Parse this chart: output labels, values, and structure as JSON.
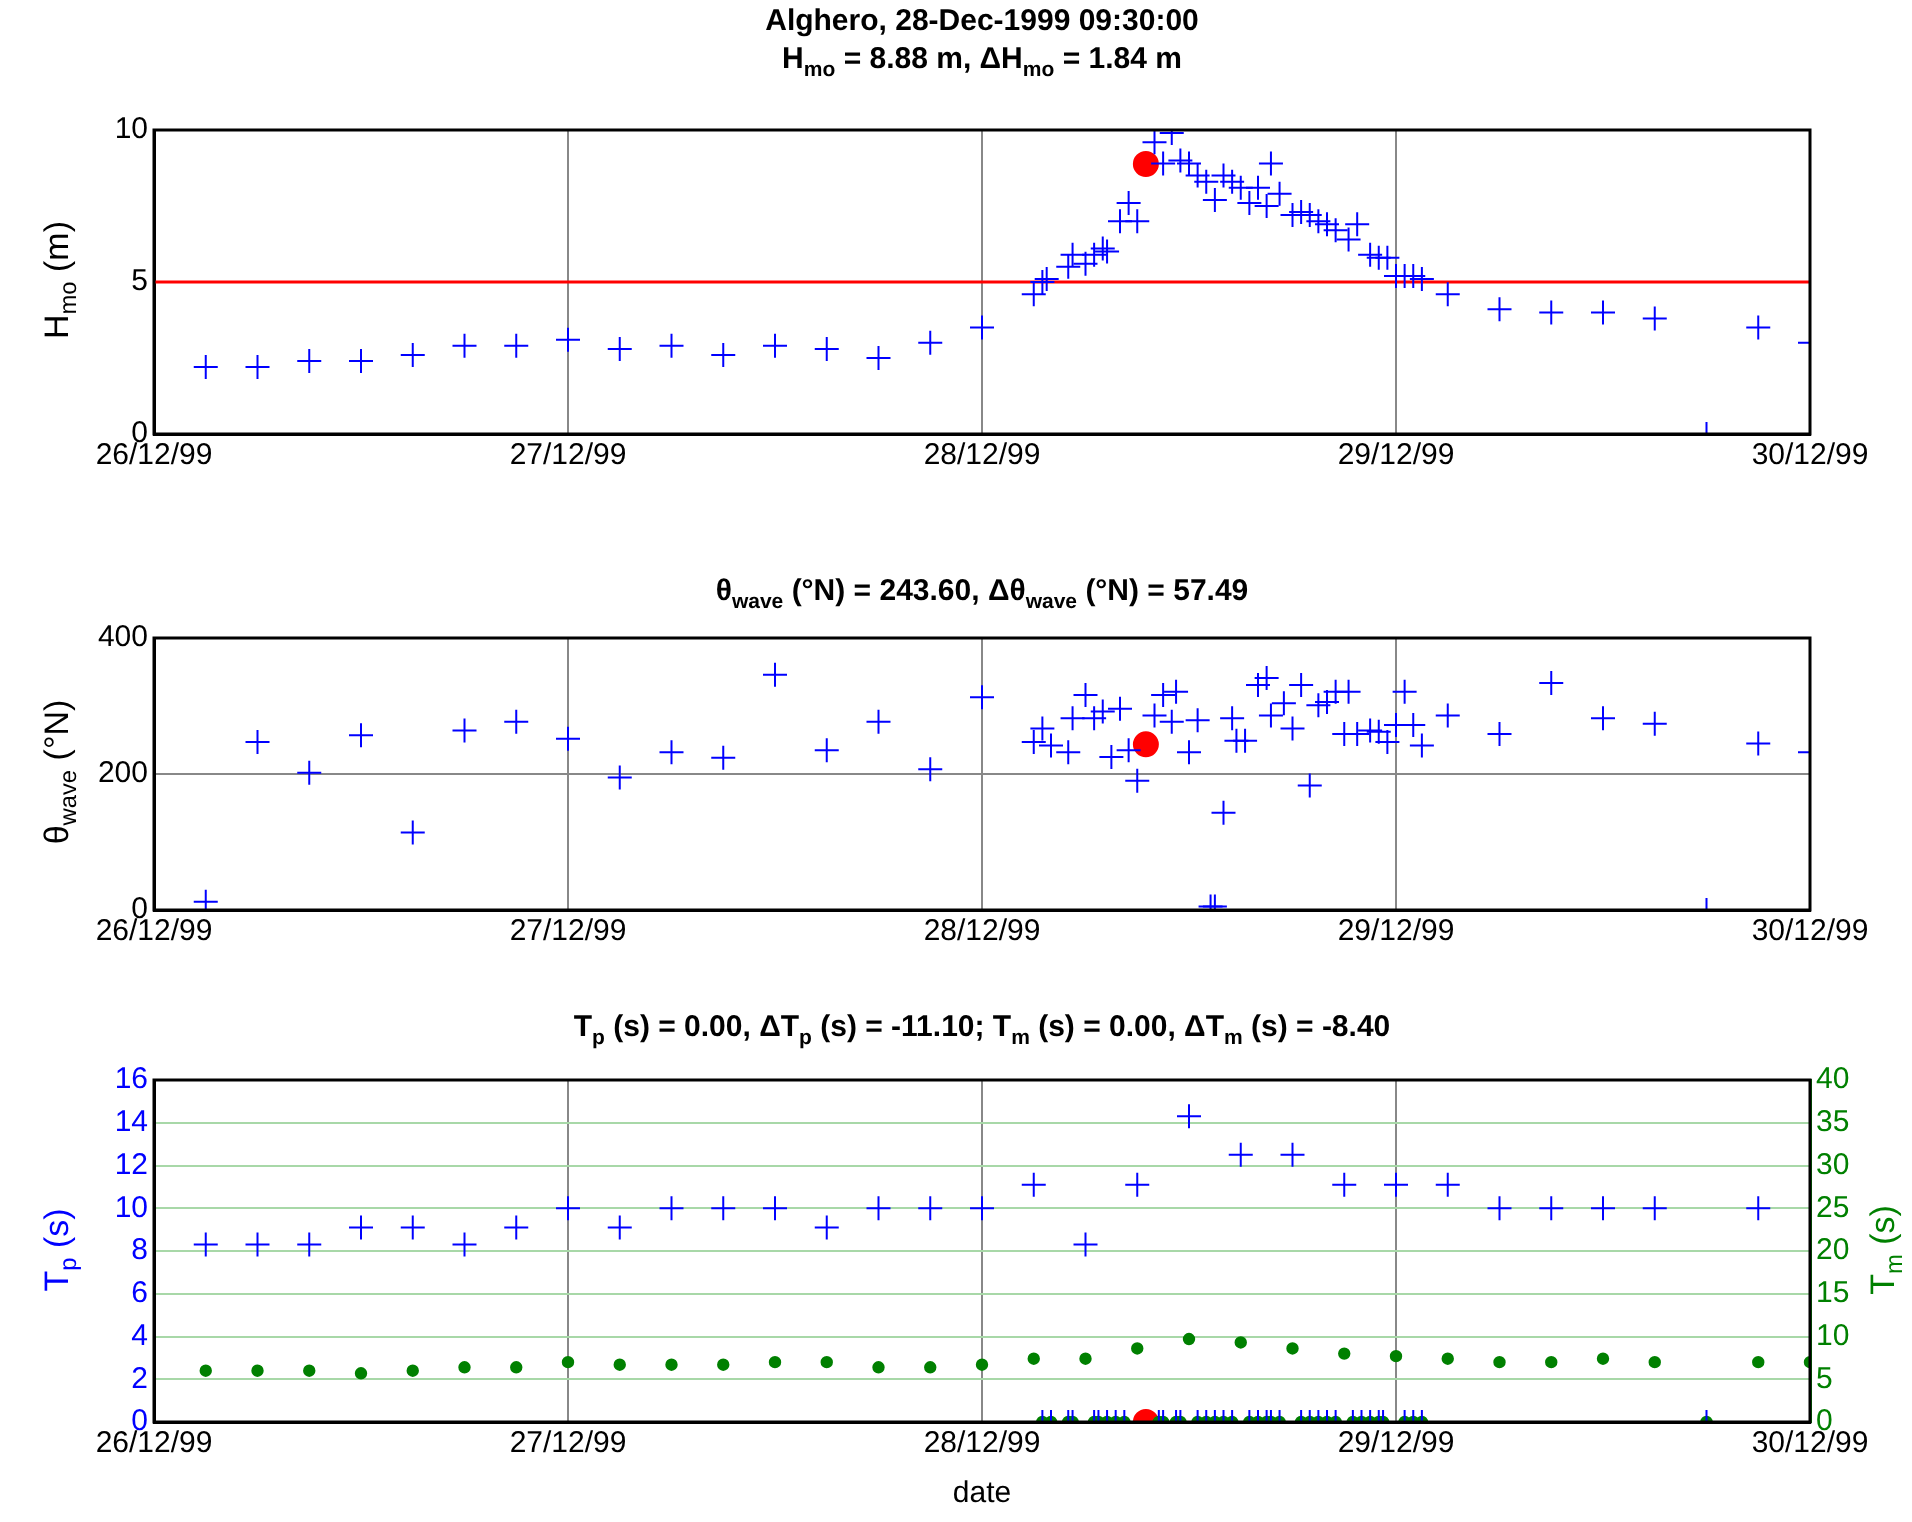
{
  "chart_data": [
    {
      "type": "scatter",
      "title": "Alghero, 28-Dec-1999 09:30:00",
      "subtitle": "H$_{mo}$ = 8.88 m, ΔH$_{mo}$ = 1.84 m",
      "ylabel": "H$_{mo}$ (m)",
      "xlim": [
        "1999-12-26",
        "1999-12-30"
      ],
      "xticks": [
        {
          "value": "1999-12-26",
          "label": "26/12/99"
        },
        {
          "value": "1999-12-27",
          "label": "27/12/99"
        },
        {
          "value": "1999-12-28",
          "label": "28/12/99"
        },
        {
          "value": "1999-12-29",
          "label": "29/12/99"
        },
        {
          "value": "1999-12-30",
          "label": "30/12/99"
        }
      ],
      "ylim": [
        0,
        10
      ],
      "yticks": [
        0,
        5,
        10
      ],
      "grid": "x",
      "ref_lines": [
        {
          "axis": "y",
          "value": 5,
          "color": "#ff0000"
        }
      ],
      "series": [
        {
          "color": "#0000ff",
          "marker": "cross",
          "x": [
            "1999-12-26T03:00",
            "1999-12-26T06:00",
            "1999-12-26T09:00",
            "1999-12-26T12:00",
            "1999-12-26T15:00",
            "1999-12-26T18:00",
            "1999-12-26T21:00",
            "1999-12-27T00:00",
            "1999-12-27T03:00",
            "1999-12-27T06:00",
            "1999-12-27T09:00",
            "1999-12-27T12:00",
            "1999-12-27T15:00",
            "1999-12-27T18:00",
            "1999-12-27T21:00",
            "1999-12-28T00:00",
            "1999-12-28T03:00",
            "1999-12-28T03:30",
            "1999-12-28T03:45",
            "1999-12-28T05:00",
            "1999-12-28T05:15",
            "1999-12-28T06:00",
            "1999-12-28T06:30",
            "1999-12-28T07:00",
            "1999-12-28T07:15",
            "1999-12-28T08:00",
            "1999-12-28T08:30",
            "1999-12-28T09:00",
            "1999-12-28T10:00",
            "1999-12-28T10:30",
            "1999-12-28T11:00",
            "1999-12-28T11:30",
            "1999-12-28T12:00",
            "1999-12-28T12:30",
            "1999-12-28T13:00",
            "1999-12-28T13:30",
            "1999-12-28T14:00",
            "1999-12-28T14:30",
            "1999-12-28T15:00",
            "1999-12-28T15:30",
            "1999-12-28T16:00",
            "1999-12-28T16:30",
            "1999-12-28T16:45",
            "1999-12-28T17:15",
            "1999-12-28T18:00",
            "1999-12-28T18:30",
            "1999-12-28T19:00",
            "1999-12-28T19:30",
            "1999-12-28T20:00",
            "1999-12-28T20:30",
            "1999-12-28T21:15",
            "1999-12-28T21:45",
            "1999-12-28T22:30",
            "1999-12-28T23:00",
            "1999-12-28T23:30",
            "1999-12-29T00:00",
            "1999-12-29T00:30",
            "1999-12-29T01:00",
            "1999-12-29T01:30",
            "1999-12-29T03:00",
            "1999-12-29T06:00",
            "1999-12-29T09:00",
            "1999-12-29T12:00",
            "1999-12-29T15:00",
            "1999-12-29T18:00",
            "1999-12-29T21:00",
            "1999-12-30T00:00"
          ],
          "values": [
            2.2,
            2.2,
            2.4,
            2.4,
            2.6,
            2.9,
            2.9,
            3.1,
            2.8,
            2.9,
            2.6,
            2.9,
            2.8,
            2.5,
            3.0,
            3.5,
            4.6,
            5.0,
            5.1,
            5.5,
            5.9,
            5.6,
            5.9,
            6.1,
            6.0,
            7.0,
            7.6,
            7.0,
            9.6,
            8.9,
            9.9,
            9.0,
            8.9,
            8.5,
            8.3,
            7.7,
            8.5,
            8.3,
            8.1,
            7.6,
            8.1,
            7.5,
            8.9,
            7.9,
            7.2,
            7.3,
            7.2,
            7.0,
            6.9,
            6.7,
            6.4,
            6.9,
            5.9,
            5.8,
            5.8,
            5.2,
            5.2,
            5.2,
            5.1,
            4.6,
            4.1,
            4.0,
            4.0,
            3.8,
            0,
            3.5,
            3.0
          ]
        },
        {
          "color": "#ff0000",
          "marker": "circle",
          "x": [
            "1999-12-28T09:30"
          ],
          "values": [
            8.88
          ]
        }
      ]
    },
    {
      "type": "scatter",
      "title": "θ$_{wave}$ (°N) = 243.60, Δθ$_{wave}$ (°N) = 57.49",
      "ylabel": "θ$_{wave}$ (°N)",
      "xlim": [
        "1999-12-26",
        "1999-12-30"
      ],
      "xticks": [
        {
          "value": "1999-12-26",
          "label": "26/12/99"
        },
        {
          "value": "1999-12-27",
          "label": "27/12/99"
        },
        {
          "value": "1999-12-28",
          "label": "28/12/99"
        },
        {
          "value": "1999-12-29",
          "label": "29/12/99"
        },
        {
          "value": "1999-12-30",
          "label": "30/12/99"
        }
      ],
      "ylim": [
        0,
        400
      ],
      "yticks": [
        0,
        200,
        400
      ],
      "grid": true,
      "series": [
        {
          "color": "#0000ff",
          "marker": "cross",
          "x": [
            "1999-12-26T03:00",
            "1999-12-26T06:00",
            "1999-12-26T09:00",
            "1999-12-26T12:00",
            "1999-12-26T15:00",
            "1999-12-26T18:00",
            "1999-12-26T21:00",
            "1999-12-27T00:00",
            "1999-12-27T03:00",
            "1999-12-27T06:00",
            "1999-12-27T09:00",
            "1999-12-27T12:00",
            "1999-12-27T15:00",
            "1999-12-27T18:00",
            "1999-12-27T21:00",
            "1999-12-28T00:00",
            "1999-12-28T03:00",
            "1999-12-28T03:30",
            "1999-12-28T04:00",
            "1999-12-28T05:00",
            "1999-12-28T05:15",
            "1999-12-28T06:00",
            "1999-12-28T06:30",
            "1999-12-28T07:00",
            "1999-12-28T07:30",
            "1999-12-28T08:00",
            "1999-12-28T08:30",
            "1999-12-28T09:00",
            "1999-12-28T10:00",
            "1999-12-28T10:30",
            "1999-12-28T11:00",
            "1999-12-28T11:15",
            "1999-12-28T12:00",
            "1999-12-28T12:30",
            "1999-12-28T13:15",
            "1999-12-28T13:30",
            "1999-12-28T14:00",
            "1999-12-28T14:30",
            "1999-12-28T14:45",
            "1999-12-28T15:15",
            "1999-12-28T16:00",
            "1999-12-28T16:30",
            "1999-12-28T16:45",
            "1999-12-28T17:30",
            "1999-12-28T18:00",
            "1999-12-28T18:30",
            "1999-12-28T19:00",
            "1999-12-28T19:30",
            "1999-12-28T20:00",
            "1999-12-28T20:30",
            "1999-12-28T21:00",
            "1999-12-28T21:15",
            "1999-12-28T21:45",
            "1999-12-28T22:30",
            "1999-12-28T23:00",
            "1999-12-28T23:30",
            "1999-12-29T00:00",
            "1999-12-29T00:30",
            "1999-12-29T01:00",
            "1999-12-29T01:30",
            "1999-12-29T03:00",
            "1999-12-29T06:00",
            "1999-12-29T09:00",
            "1999-12-29T12:00",
            "1999-12-29T15:00",
            "1999-12-29T18:00",
            "1999-12-29T21:00",
            "1999-12-30T00:00"
          ],
          "values": [
            12,
            247,
            202,
            257,
            114,
            264,
            277,
            252,
            195,
            232,
            224,
            346,
            235,
            277,
            207,
            313,
            247,
            267,
            242,
            232,
            282,
            316,
            282,
            292,
            225,
            296,
            235,
            190,
            286,
            316,
            277,
            321,
            232,
            279,
            5,
            5,
            143,
            282,
            249,
            249,
            331,
            341,
            286,
            304,
            267,
            331,
            183,
            301,
            306,
            321,
            259,
            321,
            259,
            264,
            262,
            247,
            272,
            321,
            272,
            242,
            286,
            259,
            334,
            282,
            274,
            0,
            245,
            232
          ]
        },
        {
          "color": "#ff0000",
          "marker": "circle",
          "x": [
            "1999-12-28T09:30"
          ],
          "values": [
            243.6
          ]
        }
      ]
    },
    {
      "type": "scatter",
      "title": "T$_{p}$ (s) = 0.00, ΔT$_{p}$ (s) = -11.10; T$_{m}$ (s) = 0.00, ΔT$_{m}$ (s) = -8.40",
      "xlabel": "date",
      "ylabel": "T$_{p}$ (s)",
      "y2label": "T$_{m}$ (s)",
      "xlim": [
        "1999-12-26",
        "1999-12-30"
      ],
      "xticks": [
        {
          "value": "1999-12-26",
          "label": "26/12/99"
        },
        {
          "value": "1999-12-27",
          "label": "27/12/99"
        },
        {
          "value": "1999-12-28",
          "label": "28/12/99"
        },
        {
          "value": "1999-12-29",
          "label": "29/12/99"
        },
        {
          "value": "1999-12-30",
          "label": "30/12/99"
        }
      ],
      "ylim": [
        0,
        16
      ],
      "yticks": [
        0,
        2,
        4,
        6,
        8,
        10,
        12,
        14,
        16
      ],
      "y2lim": [
        0,
        40
      ],
      "y2ticks": [
        0,
        5,
        10,
        15,
        20,
        25,
        30,
        35,
        40
      ],
      "grid": true,
      "series": [
        {
          "color": "#0000ff",
          "marker": "cross",
          "x": [
            "1999-12-26T03:00",
            "1999-12-26T06:00",
            "1999-12-26T09:00",
            "1999-12-26T12:00",
            "1999-12-26T15:00",
            "1999-12-26T18:00",
            "1999-12-26T21:00",
            "1999-12-27T00:00",
            "1999-12-27T03:00",
            "1999-12-27T06:00",
            "1999-12-27T09:00",
            "1999-12-27T12:00",
            "1999-12-27T15:00",
            "1999-12-27T18:00",
            "1999-12-27T21:00",
            "1999-12-28T00:00",
            "1999-12-28T03:00",
            "1999-12-28T03:30",
            "1999-12-28T04:00",
            "1999-12-28T05:00",
            "1999-12-28T05:15",
            "1999-12-28T06:00",
            "1999-12-28T06:30",
            "1999-12-28T06:45",
            "1999-12-28T07:15",
            "1999-12-28T07:45",
            "1999-12-28T08:15",
            "1999-12-28T09:00",
            "1999-12-28T10:15",
            "1999-12-28T10:30",
            "1999-12-28T11:15",
            "1999-12-28T11:30",
            "1999-12-28T12:00",
            "1999-12-28T12:30",
            "1999-12-28T13:00",
            "1999-12-28T13:30",
            "1999-12-28T14:00",
            "1999-12-28T14:30",
            "1999-12-28T15:00",
            "1999-12-28T15:30",
            "1999-12-28T16:00",
            "1999-12-28T16:30",
            "1999-12-28T16:45",
            "1999-12-28T17:15",
            "1999-12-28T18:00",
            "1999-12-28T18:30",
            "1999-12-28T19:00",
            "1999-12-28T19:30",
            "1999-12-28T20:00",
            "1999-12-28T20:30",
            "1999-12-28T21:00",
            "1999-12-28T21:30",
            "1999-12-28T22:00",
            "1999-12-28T22:30",
            "1999-12-28T23:00",
            "1999-12-28T23:15",
            "1999-12-29T00:00",
            "1999-12-29T00:30",
            "1999-12-29T01:00",
            "1999-12-29T01:30",
            "1999-12-29T03:00",
            "1999-12-29T06:00",
            "1999-12-29T09:00",
            "1999-12-29T12:00",
            "1999-12-29T15:00",
            "1999-12-29T18:00",
            "1999-12-29T21:00"
          ],
          "values": [
            8.3,
            8.3,
            8.3,
            9.1,
            9.1,
            8.3,
            9.1,
            10.0,
            9.1,
            10.0,
            10.0,
            10.0,
            9.1,
            10.0,
            10.0,
            10.0,
            11.1,
            0,
            0,
            0,
            0,
            8.3,
            0,
            0,
            0,
            0,
            0,
            11.1,
            0,
            0,
            0,
            0,
            14.3,
            0,
            0,
            0,
            0,
            0,
            12.5,
            0,
            0,
            0,
            0,
            0,
            12.5,
            0,
            0,
            0,
            0,
            0,
            11.1,
            0,
            0,
            0,
            0,
            0,
            11.1,
            0,
            0,
            0,
            11.1,
            10.0,
            10.0,
            10.0,
            10.0,
            0,
            10.0
          ]
        },
        {
          "color": "#008000",
          "marker": "circle",
          "axis": "y2",
          "x": [
            "1999-12-26T03:00",
            "1999-12-26T06:00",
            "1999-12-26T09:00",
            "1999-12-26T12:00",
            "1999-12-26T15:00",
            "1999-12-26T18:00",
            "1999-12-26T21:00",
            "1999-12-27T00:00",
            "1999-12-27T03:00",
            "1999-12-27T06:00",
            "1999-12-27T09:00",
            "1999-12-27T12:00",
            "1999-12-27T15:00",
            "1999-12-27T18:00",
            "1999-12-27T21:00",
            "1999-12-28T00:00",
            "1999-12-28T03:00",
            "1999-12-28T03:30",
            "1999-12-28T04:00",
            "1999-12-28T05:00",
            "1999-12-28T05:15",
            "1999-12-28T06:00",
            "1999-12-28T06:30",
            "1999-12-28T06:45",
            "1999-12-28T07:15",
            "1999-12-28T07:45",
            "1999-12-28T08:15",
            "1999-12-28T09:00",
            "1999-12-28T10:15",
            "1999-12-28T10:30",
            "1999-12-28T11:15",
            "1999-12-28T11:30",
            "1999-12-28T12:00",
            "1999-12-28T12:30",
            "1999-12-28T13:00",
            "1999-12-28T13:30",
            "1999-12-28T14:00",
            "1999-12-28T14:30",
            "1999-12-28T15:00",
            "1999-12-28T15:30",
            "1999-12-28T16:00",
            "1999-12-28T16:30",
            "1999-12-28T16:45",
            "1999-12-28T17:15",
            "1999-12-28T18:00",
            "1999-12-28T18:30",
            "1999-12-28T19:00",
            "1999-12-28T19:30",
            "1999-12-28T20:00",
            "1999-12-28T20:30",
            "1999-12-28T21:00",
            "1999-12-28T21:30",
            "1999-12-28T22:00",
            "1999-12-28T22:30",
            "1999-12-28T23:00",
            "1999-12-28T23:15",
            "1999-12-29T00:00",
            "1999-12-29T00:30",
            "1999-12-29T01:00",
            "1999-12-29T01:30",
            "1999-12-29T03:00",
            "1999-12-29T06:00",
            "1999-12-29T09:00",
            "1999-12-29T12:00",
            "1999-12-29T15:00",
            "1999-12-29T18:00",
            "1999-12-29T21:00",
            "1999-12-30T00:00"
          ],
          "values": [
            6.0,
            6.0,
            6.0,
            5.7,
            6.0,
            6.4,
            6.4,
            7.0,
            6.7,
            6.7,
            6.7,
            7.0,
            7.0,
            6.4,
            6.4,
            6.7,
            7.4,
            0,
            0,
            0,
            0,
            7.4,
            0,
            0,
            0,
            0,
            0,
            8.6,
            0,
            0,
            0,
            0,
            9.7,
            0,
            0,
            0,
            0,
            0,
            9.3,
            0,
            0,
            0,
            0,
            0,
            8.6,
            0,
            0,
            0,
            0,
            0,
            8.0,
            0,
            0,
            0,
            0,
            0,
            7.7,
            0,
            0,
            0,
            7.4,
            7.0,
            7.0,
            7.4,
            7.0,
            0,
            7.0,
            7.0
          ]
        },
        {
          "color": "#ff0000",
          "marker": "circle",
          "x": [
            "1999-12-28T09:30"
          ],
          "values": [
            0
          ]
        }
      ]
    }
  ]
}
